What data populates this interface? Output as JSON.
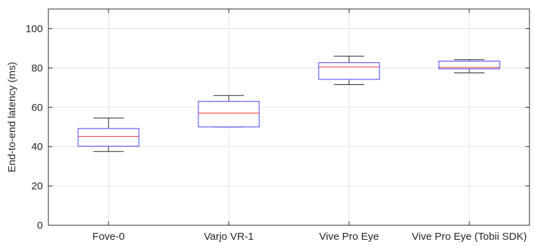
{
  "chart_data": {
    "type": "box",
    "title": "",
    "xlabel": "",
    "ylabel": "End-to-end latency (ms)",
    "ylim": [
      0,
      110
    ],
    "yticks": [
      0,
      20,
      40,
      60,
      80,
      100
    ],
    "grid": true,
    "categories": [
      "Fove-0",
      "Varjo VR-1",
      "Vive Pro Eye",
      "Vive Pro Eye (Tobii SDK)"
    ],
    "boxes": [
      {
        "category": "Fove-0",
        "min": 37.5,
        "q1": 40.2,
        "median": 45.2,
        "q3": 49.2,
        "max": 54.5
      },
      {
        "category": "Varjo VR-1",
        "min": 50,
        "q1": 50,
        "median": 57,
        "q3": 63,
        "max": 66
      },
      {
        "category": "Vive Pro Eye",
        "min": 71.5,
        "q1": 74.2,
        "median": 80.5,
        "q3": 82.7,
        "max": 86
      },
      {
        "category": "Vive Pro Eye (Tobii SDK)",
        "min": 77.5,
        "q1": 79.5,
        "median": 80.2,
        "q3": 83.5,
        "max": 84.2
      }
    ],
    "colors": {
      "box": "#3b3bff",
      "median": "#ff2a2a",
      "whisker": "#222222",
      "grid": "#e3e3e3",
      "axis": "#262626"
    }
  }
}
